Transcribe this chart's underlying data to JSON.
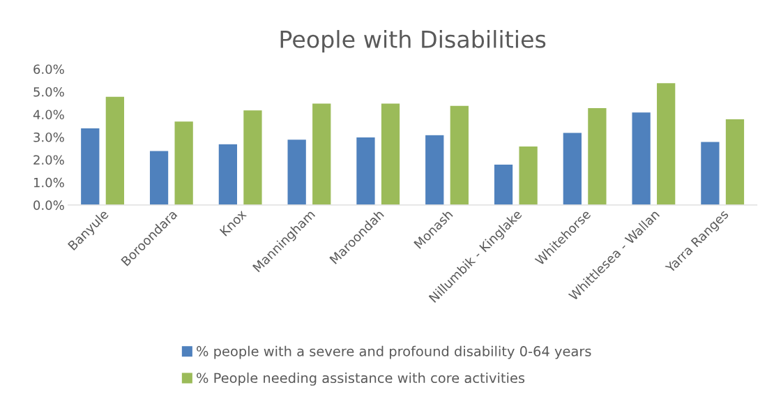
{
  "chart_data": {
    "type": "bar",
    "title": "People with Disabilities",
    "categories": [
      "Banyule",
      "Boroondara",
      "Knox",
      "Manningham",
      "Maroondah",
      "Monash",
      "Nillumbik - Kinglake",
      "Whitehorse",
      "Whittlesea - Wallan",
      "Yarra Ranges"
    ],
    "series": [
      {
        "name": "% people with a severe and profound disability 0-64 years",
        "color": "#4f81bd",
        "values": [
          3.4,
          2.4,
          2.7,
          2.9,
          3.0,
          3.1,
          1.8,
          3.2,
          4.1,
          2.8
        ]
      },
      {
        "name": "% People needing assistance with core activities",
        "color": "#9bbb59",
        "values": [
          4.8,
          3.7,
          4.2,
          4.5,
          4.5,
          4.4,
          2.6,
          4.3,
          5.4,
          3.8
        ]
      }
    ],
    "ylim": [
      0,
      6
    ],
    "yticks": [
      {
        "value": 0,
        "label": "0.0%"
      },
      {
        "value": 1,
        "label": "1.0%"
      },
      {
        "value": 2,
        "label": "2.0%"
      },
      {
        "value": 3,
        "label": "3.0%"
      },
      {
        "value": 4,
        "label": "4.0%"
      },
      {
        "value": 5,
        "label": "5.0%"
      },
      {
        "value": 6,
        "label": "6.0%"
      }
    ],
    "grid": false,
    "legend": "bottom"
  }
}
